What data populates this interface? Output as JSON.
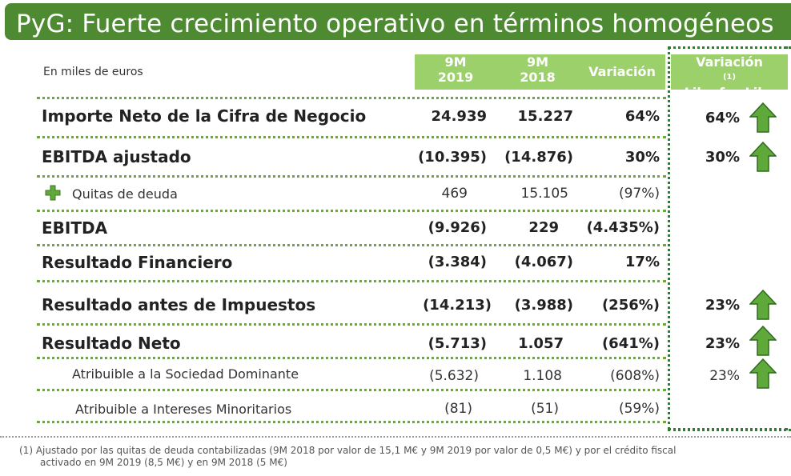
{
  "title": "PyG: Fuerte crecimiento operativo en términos homogéneos",
  "units_label": "En miles de euros",
  "headers": {
    "col1_line1": "9M",
    "col1_line2": "2019",
    "col2_line1": "9M",
    "col2_line2": "2018",
    "col3": "Variación",
    "col4_line1": "Variación",
    "col4_sup": "(1)",
    "col4_line2": "Like-for-Like"
  },
  "rows": [
    {
      "label": "Importe Neto de la Cifra de Negocio",
      "v2019": "24.939",
      "v2018": "15.227",
      "var": "64%",
      "lfl": "64%",
      "arrow": true
    },
    {
      "label": "EBITDA ajustado",
      "v2019": "(10.395)",
      "v2018": "(14.876)",
      "var": "30%",
      "lfl": "30%",
      "arrow": true
    },
    {
      "label": "Quitas de deuda",
      "v2019": "469",
      "v2018": "15.105",
      "var": "(97%)",
      "lfl": "",
      "arrow": false
    },
    {
      "label": "EBITDA",
      "v2019": "(9.926)",
      "v2018": "229",
      "var": "(4.435%)",
      "lfl": "",
      "arrow": false
    },
    {
      "label": "Resultado Financiero",
      "v2019": "(3.384)",
      "v2018": "(4.067)",
      "var": "17%",
      "lfl": "",
      "arrow": false
    },
    {
      "label": "Resultado antes de Impuestos",
      "v2019": "(14.213)",
      "v2018": "(3.988)",
      "var": "(256%)",
      "lfl": "23%",
      "arrow": true
    },
    {
      "label": "Resultado Neto",
      "v2019": "(5.713)",
      "v2018": "1.057",
      "var": "(641%)",
      "lfl": "23%",
      "arrow": true
    },
    {
      "label": "Atribuible a la Sociedad Dominante",
      "v2019": "(5.632)",
      "v2018": "1.108",
      "var": "(608%)",
      "lfl": "23%",
      "arrow": true
    },
    {
      "label": "Atribuible a Intereses Minoritarios",
      "v2019": "(81)",
      "v2018": "(51)",
      "var": "(59%)",
      "lfl": "",
      "arrow": false
    }
  ],
  "colors": {
    "title_bg": "#4e8a32",
    "header_bg": "#9bd06a",
    "arrow": "#5fa83a",
    "dots": "#6aaa3a"
  },
  "footnote_line1": "(1) Ajustado por las quitas de deuda contabilizadas (9M 2018 por valor de 15,1 M€ y 9M 2019 por valor de 0,5 M€)  y por el crédito fiscal",
  "footnote_line2": "activado en 9M 2019 (8,5 M€) y en 9M 2018 (5 M€)"
}
